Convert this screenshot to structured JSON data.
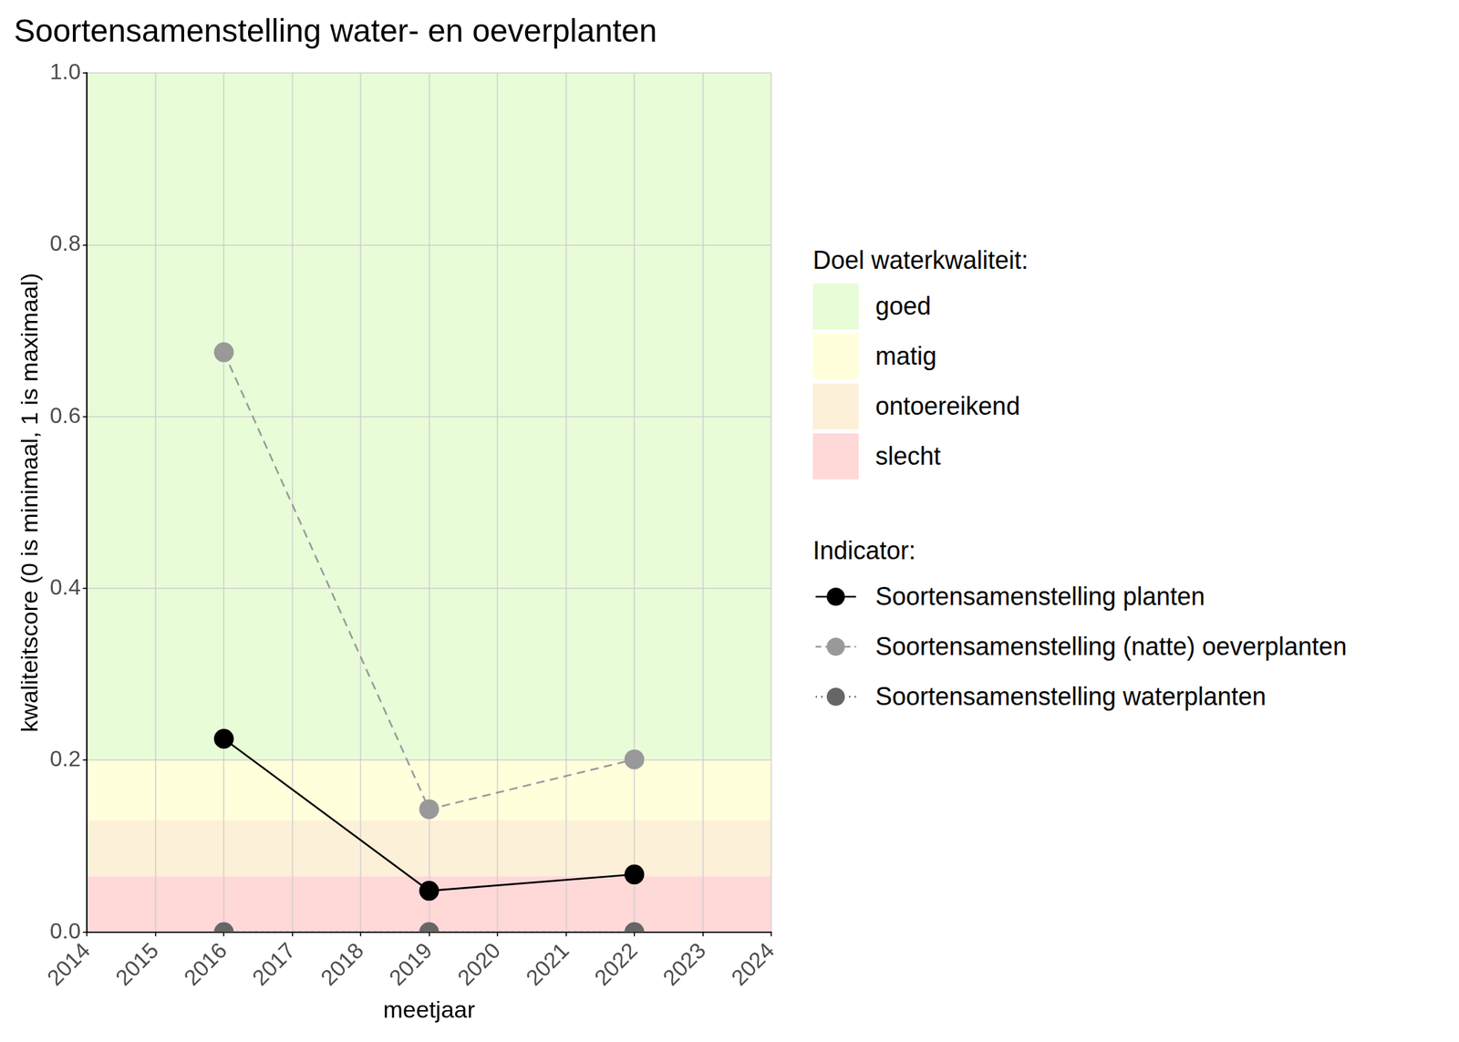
{
  "chart_data": {
    "type": "line",
    "title": "Soortensamenstelling water- en oeverplanten",
    "x_label": "meetjaar",
    "y_label": "kwaliteitscore (0 is minimaal, 1 is maximaal)",
    "x": [
      2016,
      2019,
      2022
    ],
    "xlim": [
      2014,
      2024
    ],
    "xticks": [
      2014,
      2015,
      2016,
      2017,
      2018,
      2019,
      2020,
      2021,
      2022,
      2023,
      2024
    ],
    "ylim": [
      0,
      1
    ],
    "yticks": [
      {
        "value": 0,
        "label": "0.0"
      },
      0.2,
      0.4,
      0.6,
      0.8,
      {
        "value": 1,
        "label": "1.0"
      }
    ],
    "grid": true,
    "legend": "right",
    "band_title": "Doel waterkwaliteit:",
    "bands": [
      {
        "name": "goed",
        "color": "#e8fcd8",
        "from": 0.2,
        "to": 1.0
      },
      {
        "name": "matig",
        "color": "#ffffdc",
        "from": 0.13,
        "to": 0.2
      },
      {
        "name": "ontoereikend",
        "color": "#fdf0d8",
        "from": 0.065,
        "to": 0.13
      },
      {
        "name": "slecht",
        "color": "#ffd8d8",
        "from": 0,
        "to": 0.065
      }
    ],
    "series_title": "Indicator:",
    "series": [
      {
        "name": "Soortensamenstelling planten",
        "color": "#000000",
        "values": [
          0.225,
          0.048,
          0.067
        ],
        "marker": "circle",
        "line_style": "solid"
      },
      {
        "name": "Soortensamenstelling (natte) oeverplanten",
        "color": "#999999",
        "values": [
          0.675,
          0.143,
          0.201
        ],
        "marker": "circle",
        "line_style": "dashed"
      },
      {
        "name": "Soortensamenstelling waterplanten",
        "color": "#666666",
        "values": [
          0,
          0,
          0
        ],
        "marker": "circle",
        "line_style": "dotted"
      }
    ]
  }
}
